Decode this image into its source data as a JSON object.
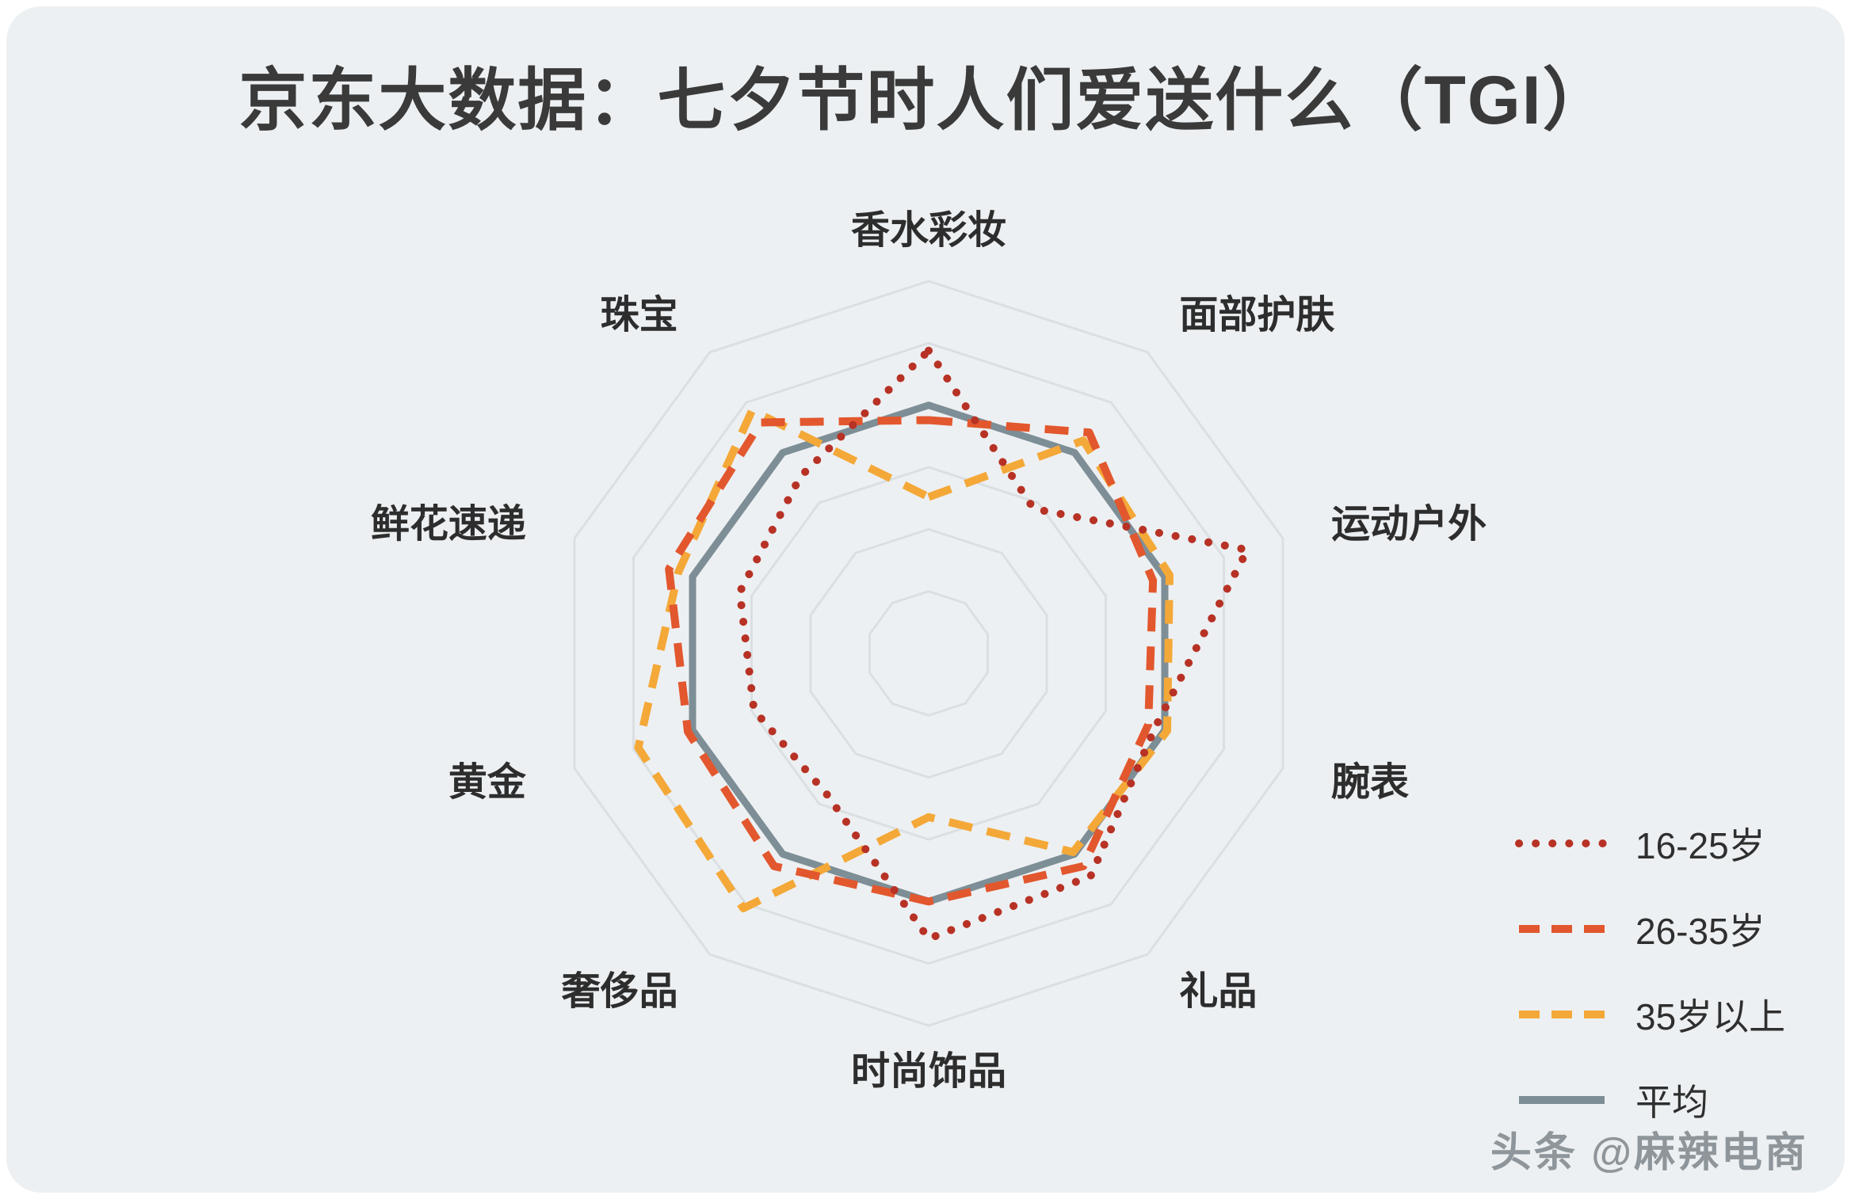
{
  "title": "京东大数据：七夕节时人们爱送什么（TGI）",
  "watermark": "头条 @麻辣电商",
  "colors": {
    "background": "#edf0f2",
    "grid": "#dadfe1",
    "label": "#2d2d2d",
    "title": "#3a3a3a",
    "red": "#b73225",
    "orange": "#e2572e",
    "amber": "#f4a838",
    "gray": "#7d8e96"
  },
  "chart_data": {
    "type": "radar",
    "title": "京东大数据：七夕节时人们爱送什么（TGI）",
    "categories": [
      "香水彩妆",
      "面部护肤",
      "运动户外",
      "腕表",
      "礼品",
      "时尚饰品",
      "奢侈品",
      "黄金",
      "鲜花速递",
      "珠宝"
    ],
    "min": 0,
    "max": 150,
    "rings": 6,
    "grid": "concentric-polygons",
    "tick_labels_shown": false,
    "legend_position": "right",
    "series": [
      {
        "name": "16-25岁",
        "color": "#b73225",
        "style": "dotted",
        "values": [
          122,
          72,
          135,
          96,
          111,
          115,
          70,
          74,
          80,
          88
        ]
      },
      {
        "name": "26-35岁",
        "color": "#e2572e",
        "style": "dashed",
        "values": [
          94,
          110,
          95,
          93,
          106,
          100,
          106,
          102,
          110,
          115
        ]
      },
      {
        "name": "35岁以上",
        "color": "#f4a838",
        "style": "dashed",
        "values": [
          63,
          106,
          102,
          101,
          99,
          66,
          127,
          123,
          106,
          121
        ]
      },
      {
        "name": "平均",
        "color": "#7d8e96",
        "style": "solid",
        "values": [
          100,
          100,
          100,
          100,
          100,
          100,
          100,
          100,
          100,
          100
        ]
      }
    ]
  }
}
